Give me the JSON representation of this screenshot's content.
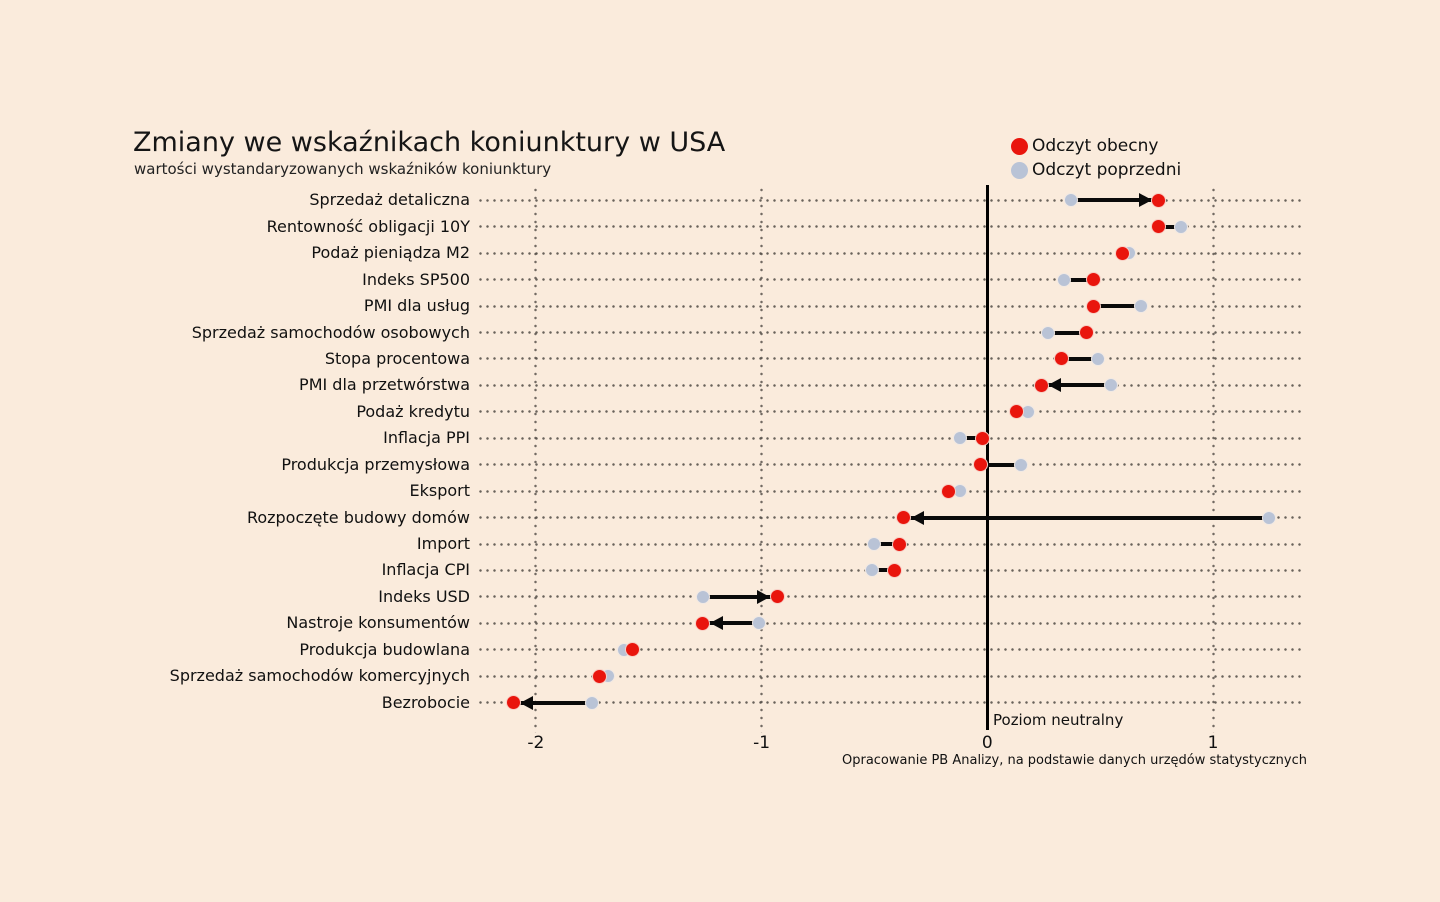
{
  "page": {
    "background": "#faebdc"
  },
  "header": {
    "title": "Zmiany we wskaźnikach koniunktury w USA",
    "subtitle": "wartości wystandaryzowanych wskaźników koniunktury"
  },
  "legend": {
    "current": {
      "label": "Odczyt obecny",
      "color": "#e9150d"
    },
    "previous": {
      "label": "Odczyt poprzedni",
      "color": "#b9c3d6"
    }
  },
  "chart_data": {
    "type": "scatter",
    "subtype": "dumbbell-dot-plot",
    "title": "Zmiany we wskaźnikach koniunktury w USA",
    "subtitle": "wartości wystandaryzowanych wskaźników koniunktury",
    "xlabel": "",
    "ylabel": "",
    "xlim": [
      -2.26,
      1.4
    ],
    "x_ticks": [
      "-2",
      "-1",
      "0",
      "1"
    ],
    "x_tick_values": [
      -2,
      -1,
      0,
      1
    ],
    "grid": "dotted",
    "legend_position": "top-right",
    "neutral_line": {
      "x": 0,
      "label": "Poziom neutralny"
    },
    "categories": [
      "Sprzedaż detaliczna",
      "Rentowność obligacji 10Y",
      "Podaż pieniądza M2",
      "Indeks SP500",
      "PMI dla usług",
      "Sprzedaż samochodów osobowych",
      "Stopa procentowa",
      "PMI dla przetwórstwa",
      "Podaż kredytu",
      "Inflacja PPI",
      "Produkcja przemysłowa",
      "Eksport",
      "Rozpoczęte budowy domów",
      "Import",
      "Inflacja CPI",
      "Indeks USD",
      "Nastroje konsumentów",
      "Produkcja budowlana",
      "Sprzedaż samochodów komercyjnych",
      "Bezrobocie"
    ],
    "series": [
      {
        "name": "Odczyt obecny",
        "color": "#e9150d",
        "values": [
          0.76,
          0.76,
          0.6,
          0.47,
          0.47,
          0.44,
          0.33,
          0.24,
          0.13,
          -0.02,
          -0.03,
          -0.17,
          -0.37,
          -0.39,
          -0.41,
          -0.93,
          -1.26,
          -1.57,
          -1.72,
          -2.1
        ]
      },
      {
        "name": "Odczyt poprzedni",
        "color": "#b9c3d6",
        "values": [
          0.37,
          0.86,
          0.63,
          0.34,
          0.68,
          0.27,
          0.49,
          0.55,
          0.18,
          -0.12,
          0.15,
          -0.12,
          1.25,
          -0.5,
          -0.51,
          -1.26,
          -1.01,
          -1.61,
          -1.68,
          -1.75
        ]
      }
    ],
    "arrowheads": [
      true,
      false,
      false,
      false,
      false,
      false,
      false,
      true,
      false,
      false,
      false,
      false,
      true,
      false,
      false,
      true,
      true,
      false,
      false,
      true
    ]
  },
  "footer": {
    "source": "Opracowanie PB Analizy, na podstawie danych urzędów statystycznych"
  }
}
